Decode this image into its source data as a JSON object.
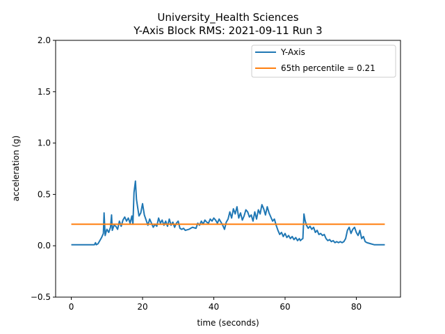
{
  "chart_data": {
    "type": "line",
    "title_line1": "University_Health Sciences",
    "title_line2": "Y-Axis Block RMS: 2021-09-11 Run 3",
    "xlabel": "time (seconds)",
    "ylabel": "acceleration (g)",
    "xlim": [
      -4.4,
      92.4
    ],
    "ylim": [
      -0.5,
      2.0
    ],
    "xticks": [
      0,
      20,
      40,
      60,
      80
    ],
    "xtick_labels": [
      "0",
      "20",
      "40",
      "60",
      "80"
    ],
    "yticks": [
      -0.5,
      0.0,
      0.5,
      1.0,
      1.5,
      2.0
    ],
    "ytick_labels": [
      "−0.5",
      "0.0",
      "0.5",
      "1.0",
      "1.5",
      "2.0"
    ],
    "grid": false,
    "legend_position": "upper-right",
    "series": [
      {
        "name": "Y-Axis",
        "color": "#1f77b4",
        "x": [
          0,
          6.5,
          6.8,
          7.0,
          7.5,
          8.0,
          8.5,
          9.0,
          9.2,
          9.5,
          9.8,
          10.0,
          10.5,
          11.0,
          11.3,
          11.5,
          12.0,
          12.5,
          13.0,
          13.5,
          14.0,
          14.5,
          15.0,
          15.5,
          16.0,
          16.5,
          17.0,
          17.3,
          17.6,
          18.0,
          18.3,
          18.6,
          19.0,
          19.5,
          20.0,
          20.5,
          21.0,
          21.5,
          22.0,
          22.5,
          23.0,
          23.5,
          24.0,
          24.5,
          25.0,
          25.5,
          26.0,
          26.5,
          27.0,
          27.5,
          28.0,
          28.5,
          29.0,
          29.5,
          30.0,
          30.5,
          31.0,
          31.5,
          32.0,
          33.0,
          34.0,
          35.0,
          35.5,
          36.0,
          36.5,
          37.0,
          37.5,
          38.0,
          38.5,
          39.0,
          39.5,
          40.0,
          40.5,
          41.0,
          41.5,
          42.0,
          42.5,
          43.0,
          43.5,
          44.0,
          44.5,
          45.0,
          45.5,
          46.0,
          46.5,
          47.0,
          47.5,
          48.0,
          48.5,
          49.0,
          49.5,
          50.0,
          50.5,
          51.0,
          51.5,
          52.0,
          52.5,
          53.0,
          53.5,
          54.0,
          54.5,
          55.0,
          55.5,
          56.0,
          56.5,
          57.0,
          57.5,
          58.0,
          58.5,
          59.0,
          59.5,
          60.0,
          60.5,
          61.0,
          61.5,
          62.0,
          62.5,
          63.0,
          63.5,
          64.0,
          64.3,
          64.6,
          65.0,
          65.3,
          65.6,
          66.0,
          66.5,
          67.0,
          67.5,
          68.0,
          68.5,
          69.0,
          69.5,
          70.0,
          70.5,
          71.0,
          71.5,
          72.0,
          72.5,
          73.0,
          73.5,
          74.0,
          74.5,
          75.0,
          75.5,
          76.0,
          76.5,
          77.0,
          77.5,
          78.0,
          78.5,
          79.0,
          79.5,
          80.0,
          80.5,
          81.0,
          81.5,
          82.0,
          82.5,
          83.0,
          84.0,
          85.0,
          86.0,
          87.0,
          88.0
        ],
        "y": [
          0.01,
          0.01,
          0.03,
          0.01,
          0.02,
          0.05,
          0.08,
          0.12,
          0.32,
          0.1,
          0.14,
          0.16,
          0.13,
          0.18,
          0.3,
          0.15,
          0.2,
          0.19,
          0.16,
          0.24,
          0.19,
          0.25,
          0.28,
          0.24,
          0.27,
          0.22,
          0.29,
          0.21,
          0.52,
          0.63,
          0.45,
          0.38,
          0.29,
          0.32,
          0.41,
          0.3,
          0.25,
          0.2,
          0.26,
          0.22,
          0.18,
          0.21,
          0.19,
          0.27,
          0.22,
          0.25,
          0.2,
          0.24,
          0.19,
          0.26,
          0.2,
          0.23,
          0.18,
          0.22,
          0.24,
          0.17,
          0.16,
          0.17,
          0.15,
          0.16,
          0.18,
          0.17,
          0.22,
          0.2,
          0.24,
          0.21,
          0.25,
          0.23,
          0.22,
          0.26,
          0.24,
          0.27,
          0.25,
          0.22,
          0.26,
          0.23,
          0.2,
          0.16,
          0.23,
          0.26,
          0.33,
          0.27,
          0.36,
          0.31,
          0.38,
          0.27,
          0.32,
          0.25,
          0.29,
          0.35,
          0.33,
          0.28,
          0.3,
          0.24,
          0.33,
          0.26,
          0.35,
          0.31,
          0.4,
          0.36,
          0.3,
          0.38,
          0.32,
          0.28,
          0.24,
          0.26,
          0.2,
          0.15,
          0.11,
          0.13,
          0.09,
          0.12,
          0.08,
          0.1,
          0.07,
          0.09,
          0.06,
          0.08,
          0.05,
          0.07,
          0.05,
          0.06,
          0.07,
          0.31,
          0.25,
          0.2,
          0.17,
          0.19,
          0.16,
          0.18,
          0.13,
          0.15,
          0.11,
          0.12,
          0.1,
          0.11,
          0.07,
          0.05,
          0.06,
          0.04,
          0.05,
          0.03,
          0.04,
          0.03,
          0.04,
          0.03,
          0.04,
          0.07,
          0.15,
          0.18,
          0.12,
          0.16,
          0.18,
          0.13,
          0.1,
          0.15,
          0.07,
          0.09,
          0.04,
          0.03,
          0.02,
          0.01,
          0.01,
          0.01,
          0.01
        ]
      },
      {
        "name": "65th percentile = 0.21",
        "color": "#ff7f0e",
        "x": [
          0,
          88
        ],
        "y": [
          0.21,
          0.21
        ]
      }
    ]
  }
}
